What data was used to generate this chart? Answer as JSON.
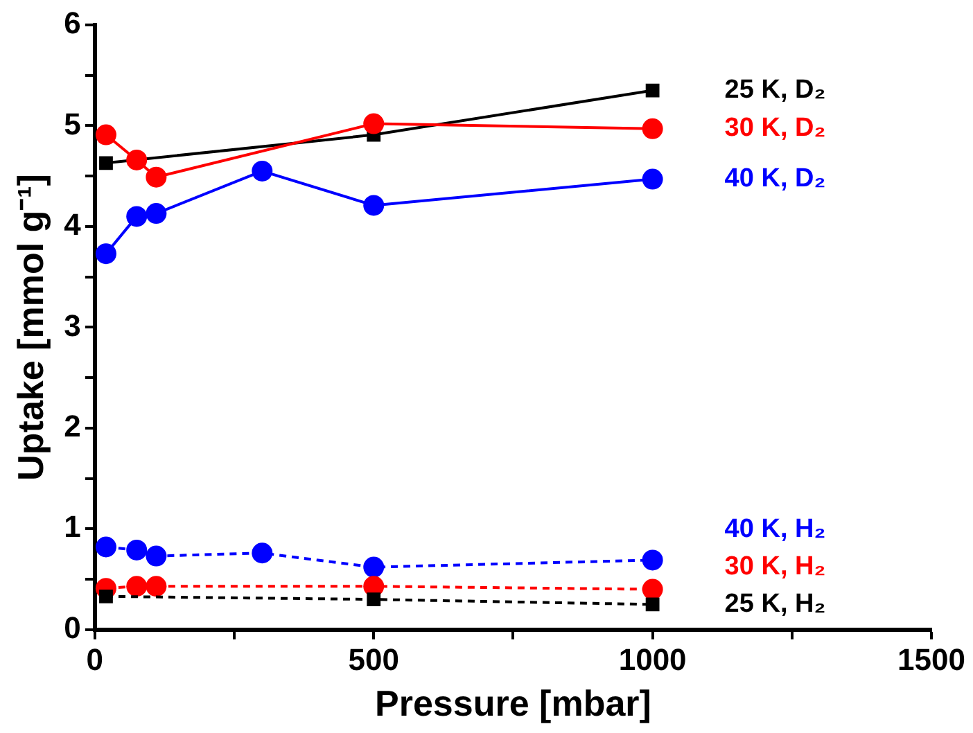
{
  "chart_data": {
    "type": "line",
    "xlabel": "Pressure [mbar]",
    "ylabel": "Uptake [mmol g⁻¹]",
    "xlim": [
      0,
      1500
    ],
    "xticks": [
      0,
      {
        "value": 250,
        "label": null
      },
      500,
      {
        "value": 750,
        "label": null
      },
      1000,
      {
        "value": 1250,
        "label": null
      },
      1500
    ],
    "ylim": [
      0,
      6
    ],
    "yticks": [
      0,
      {
        "value": 0.5,
        "label": null
      },
      1,
      {
        "value": 1.5,
        "label": null
      },
      2,
      {
        "value": 2.5,
        "label": null
      },
      3,
      {
        "value": 3.5,
        "label": null
      },
      4,
      {
        "value": 4.5,
        "label": null
      },
      5,
      {
        "value": 5.5,
        "label": null
      },
      6
    ],
    "grid": false,
    "legend": false,
    "series": [
      {
        "name": "25 K, D₂",
        "color": "#000000",
        "marker": "square",
        "line_style": "solid",
        "x": [
          20,
          500,
          1000
        ],
        "values": [
          4.63,
          4.91,
          5.35
        ]
      },
      {
        "name": "30 K, D₂",
        "color": "#ff0000",
        "marker": "circle",
        "line_style": "solid",
        "x": [
          20,
          75,
          110,
          500,
          1000
        ],
        "values": [
          4.91,
          4.66,
          4.49,
          5.02,
          4.97
        ]
      },
      {
        "name": "40 K, D₂",
        "color": "#0000ff",
        "marker": "circle",
        "line_style": "solid",
        "x": [
          20,
          75,
          110,
          300,
          500,
          1000
        ],
        "values": [
          3.73,
          4.1,
          4.13,
          4.55,
          4.21,
          4.47
        ]
      },
      {
        "name": "40 K, H₂",
        "color": "#0000ff",
        "marker": "circle",
        "line_style": "dashed",
        "x": [
          20,
          75,
          110,
          300,
          500,
          1000
        ],
        "values": [
          0.82,
          0.79,
          0.73,
          0.76,
          0.62,
          0.69
        ]
      },
      {
        "name": "30 K, H₂",
        "color": "#ff0000",
        "marker": "circle",
        "line_style": "dashed",
        "x": [
          20,
          75,
          110,
          500,
          1000
        ],
        "values": [
          0.41,
          0.43,
          0.43,
          0.43,
          0.4
        ]
      },
      {
        "name": "25 K, H₂",
        "color": "#000000",
        "marker": "square",
        "line_style": "dashed",
        "x": [
          20,
          500,
          1000
        ],
        "values": [
          0.33,
          0.3,
          0.25
        ]
      }
    ]
  }
}
